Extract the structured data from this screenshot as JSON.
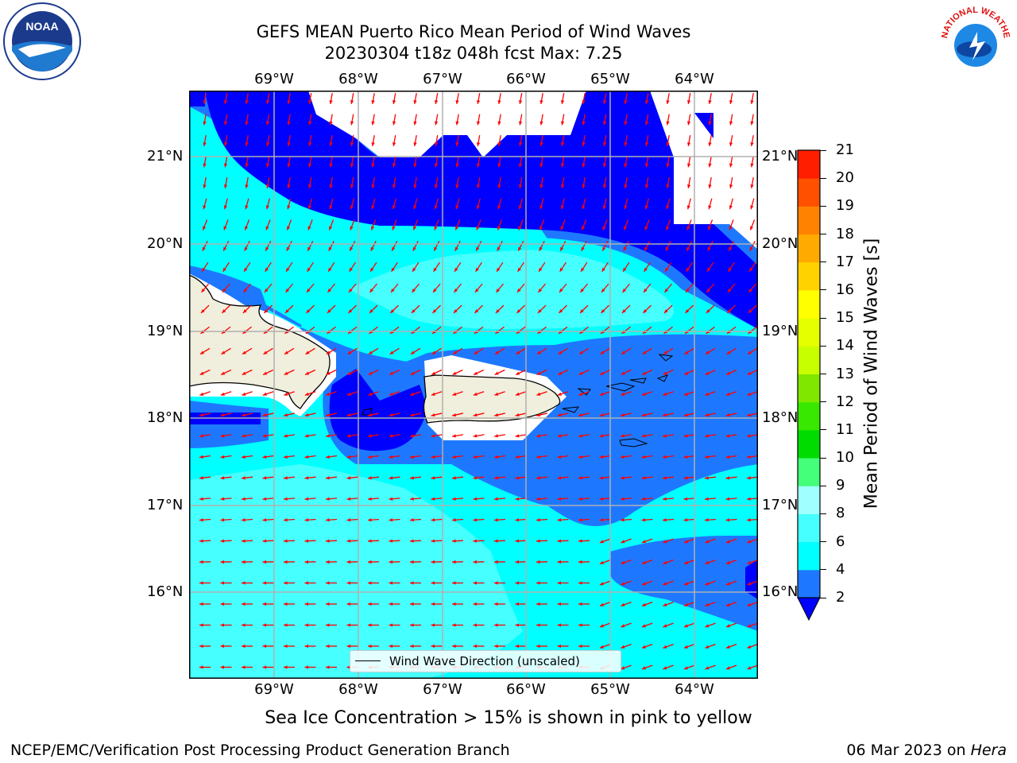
{
  "title": {
    "line1": "GEFS MEAN Puerto Rico Mean Period of Wind Waves",
    "line2": "20230304 t18z 048h fcst   Max: 7.25"
  },
  "lon_labels": [
    "69°W",
    "68°W",
    "67°W",
    "66°W",
    "65°W",
    "64°W"
  ],
  "lat_labels": [
    "21°N",
    "20°N",
    "19°N",
    "18°N",
    "17°N",
    "16°N"
  ],
  "colorbar": {
    "title": "Mean Period of Wind Waves [s]",
    "ticks": [
      "2",
      "4",
      "6",
      "8",
      "9",
      "10",
      "11",
      "12",
      "13",
      "14",
      "15",
      "16",
      "17",
      "18",
      "19",
      "20",
      "21"
    ],
    "colors": [
      "#0000ff",
      "#1e78ff",
      "#00ffff",
      "#46ffff",
      "#a0ffff",
      "#44ff7a",
      "#00dc00",
      "#38e800",
      "#80e800",
      "#c8ff00",
      "#e6ff00",
      "#ffff00",
      "#ffd200",
      "#ffaa00",
      "#ff8200",
      "#ff5000",
      "#ff1e00",
      "#ff0000"
    ],
    "extend": "min"
  },
  "legend": {
    "label": "Wind Wave Direction (unscaled)"
  },
  "caption": "Sea Ice Concentration > 15% is shown in pink to yellow",
  "footer": {
    "left": "NCEP/EMC/Verification Post Processing Product Generation Branch",
    "right_date": "06 Mar 2023 on ",
    "right_host": "Hera"
  },
  "logos": {
    "noaa": "NOAA",
    "nws": "NATIONAL WEATHER SERVICE"
  },
  "map_data": {
    "lon_range": [
      -70.0,
      -63.3
    ],
    "lat_range": [
      15.0,
      21.75
    ],
    "fill_colors": {
      "band_2_4": "#1e78ff",
      "band_lt2": "#0000ff",
      "band_4_6": "#00ffff",
      "band_6_8": "#46ffff",
      "land": "#f0eedc",
      "arrow": "#ff0000"
    }
  }
}
